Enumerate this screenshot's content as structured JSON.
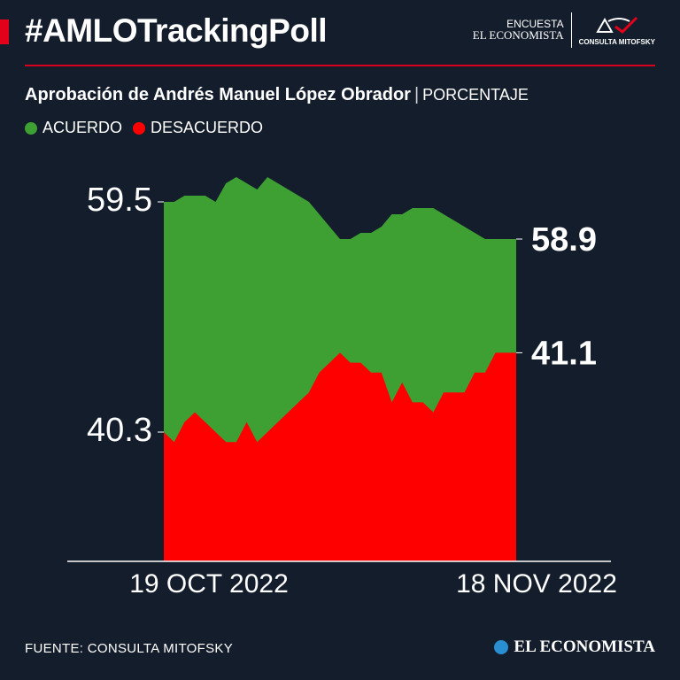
{
  "header": {
    "hashtag": "#AMLOTrackingPoll",
    "encuesta": "ENCUESTA",
    "publisher": "EL ECONOMISTA",
    "partner": "CONSULTA MITOFSKY"
  },
  "subtitle": {
    "main": "Aprobación de Andrés Manuel López Obrador",
    "unit": "PORCENTAJE"
  },
  "colors": {
    "acuerdo": "#3ea033",
    "desacuerdo": "#ff0000",
    "accent": "#e3001b",
    "background": "#141d2b"
  },
  "chart_data": {
    "type": "area",
    "x_start_label": "19 OCT 2022",
    "x_end_label": "18 NOV 2022",
    "x": [
      1,
      2,
      3,
      4,
      5,
      6,
      7,
      8,
      9,
      10,
      11,
      12,
      13,
      14,
      15,
      16,
      17,
      18,
      19,
      20,
      21,
      22,
      23,
      24,
      25,
      26,
      27,
      28,
      29,
      30,
      31,
      32,
      33,
      34,
      35
    ],
    "series": [
      {
        "name": "ACUERDO",
        "color": "#3ea033",
        "values": [
          59.5,
          59.5,
          59.6,
          59.6,
          59.6,
          59.5,
          59.8,
          59.9,
          59.8,
          59.7,
          59.9,
          59.8,
          59.7,
          59.6,
          59.5,
          59.3,
          59.1,
          58.9,
          58.9,
          59.0,
          59.0,
          59.1,
          59.3,
          59.3,
          59.4,
          59.4,
          59.4,
          59.3,
          59.2,
          59.1,
          59.0,
          58.9,
          58.9,
          58.9,
          58.9
        ]
      },
      {
        "name": "DESACUERDO",
        "color": "#ff0000",
        "values": [
          40.3,
          40.2,
          40.4,
          40.5,
          40.4,
          40.3,
          40.2,
          40.2,
          40.4,
          40.2,
          40.3,
          40.4,
          40.5,
          40.6,
          40.7,
          40.9,
          41.0,
          41.1,
          41.0,
          41.0,
          40.9,
          40.9,
          40.6,
          40.8,
          40.6,
          40.6,
          40.5,
          40.7,
          40.7,
          40.7,
          40.9,
          40.9,
          41.1,
          41.1,
          41.1
        ]
      }
    ],
    "labeled_values": {
      "start_acuerdo": "59.5",
      "start_desacuerdo": "40.3",
      "end_acuerdo": "58.9",
      "end_desacuerdo": "41.1"
    },
    "legend": [
      "ACUERDO",
      "DESACUERDO"
    ],
    "legend_position": "top-left"
  },
  "footer": {
    "source": "FUENTE: CONSULTA MITOFSKY",
    "logo": "EL ECONOMISTA"
  }
}
